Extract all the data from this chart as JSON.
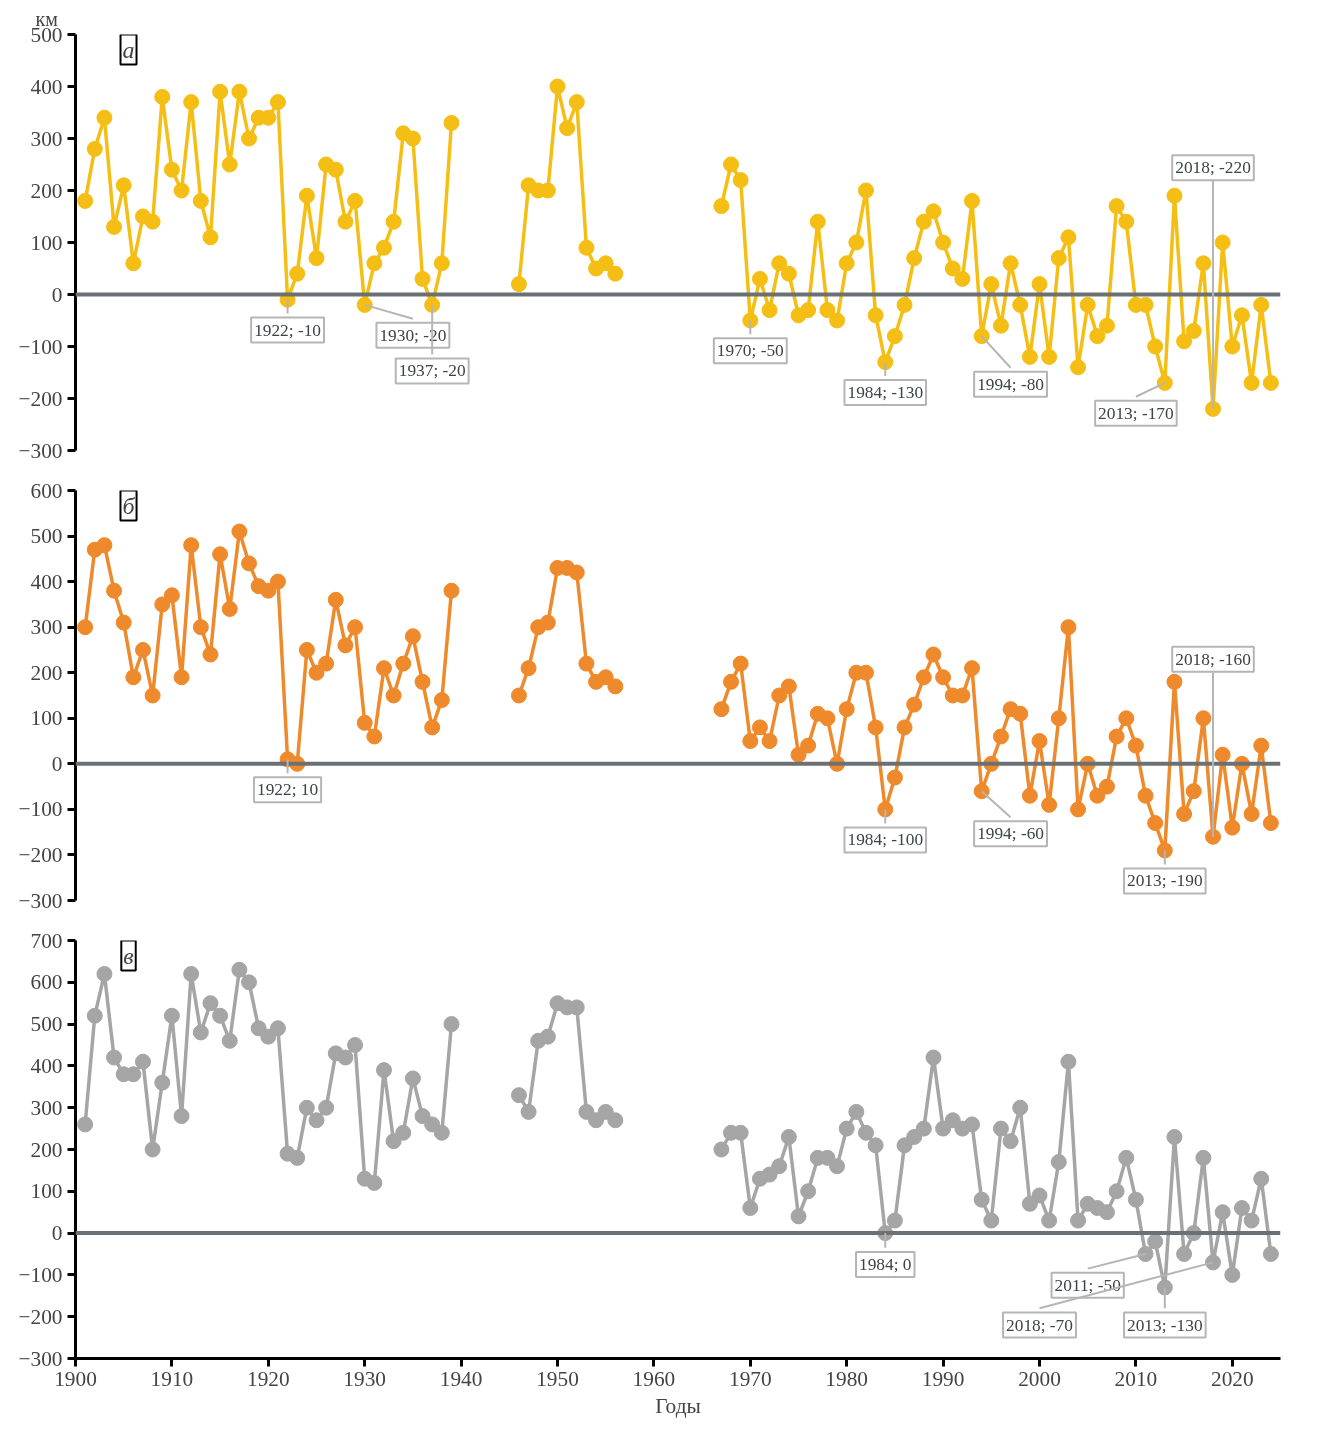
{
  "chart_data": [
    {
      "type": "line",
      "title": "а",
      "ylabel": "км",
      "marker": "circle",
      "line_style": "solid",
      "tick_labels": "y",
      "grid": false,
      "xlim": [
        1900,
        2025
      ],
      "xticks": [
        1900,
        1910,
        1920,
        1930,
        1940,
        1950,
        1960,
        1970,
        1980,
        1990,
        2000,
        2010,
        2020
      ],
      "ylim": [
        -300,
        500
      ],
      "yticks": [
        -300,
        -200,
        -100,
        0,
        100,
        200,
        300,
        400,
        500
      ],
      "ref_lines": [
        {
          "axis": "y",
          "value": 0,
          "label": null,
          "color": "#6b7075"
        }
      ],
      "x": [
        1901,
        1902,
        1903,
        1904,
        1905,
        1906,
        1907,
        1908,
        1909,
        1910,
        1911,
        1912,
        1913,
        1914,
        1915,
        1916,
        1917,
        1918,
        1919,
        1920,
        1921,
        1922,
        1923,
        1924,
        1925,
        1926,
        1927,
        1928,
        1929,
        1930,
        1931,
        1932,
        1933,
        1934,
        1935,
        1936,
        1937,
        1938,
        1939,
        1940,
        1941,
        1942,
        1943,
        1944,
        1945,
        1946,
        1947,
        1948,
        1949,
        1950,
        1951,
        1952,
        1953,
        1954,
        1955,
        1956,
        1957,
        1958,
        1959,
        1960,
        1961,
        1962,
        1963,
        1964,
        1965,
        1966,
        1967,
        1968,
        1969,
        1970,
        1971,
        1972,
        1973,
        1974,
        1975,
        1976,
        1977,
        1978,
        1979,
        1980,
        1981,
        1982,
        1983,
        1984,
        1985,
        1986,
        1987,
        1988,
        1989,
        1990,
        1991,
        1992,
        1993,
        1994,
        1995,
        1996,
        1997,
        1998,
        1999,
        2000,
        2001,
        2002,
        2003,
        2004,
        2005,
        2006,
        2007,
        2008,
        2009,
        2010,
        2011,
        2012,
        2013,
        2014,
        2015,
        2016,
        2017,
        2018,
        2019,
        2020,
        2021,
        2022,
        2023,
        2024
      ],
      "series": [
        {
          "color": "#f5be14",
          "values": [
            180,
            280,
            340,
            130,
            210,
            60,
            150,
            140,
            380,
            240,
            200,
            370,
            180,
            110,
            390,
            250,
            390,
            300,
            340,
            340,
            370,
            -10,
            40,
            190,
            70,
            250,
            240,
            140,
            180,
            -20,
            60,
            90,
            140,
            310,
            300,
            30,
            -20,
            60,
            330,
            null,
            null,
            null,
            null,
            null,
            null,
            20,
            210,
            200,
            200,
            400,
            320,
            370,
            90,
            50,
            60,
            40,
            null,
            null,
            null,
            null,
            null,
            null,
            null,
            null,
            null,
            null,
            170,
            250,
            220,
            -50,
            30,
            -30,
            60,
            40,
            -40,
            -30,
            140,
            -30,
            -50,
            60,
            100,
            200,
            -40,
            -130,
            -80,
            -20,
            70,
            140,
            160,
            100,
            50,
            30,
            180,
            -80,
            20,
            -60,
            60,
            -20,
            -120,
            20,
            -120,
            70,
            110,
            -140,
            -20,
            -80,
            -60,
            170,
            140,
            -20,
            -20,
            -100,
            -170,
            190,
            -90,
            -70,
            60,
            -220,
            100,
            -100,
            -40,
            -170,
            -20,
            -170
          ]
        }
      ],
      "annotations": [
        {
          "text": "1922; -10",
          "x": 1922,
          "y": -10
        },
        {
          "text": "1930; -20",
          "x": 1930,
          "y": -20
        },
        {
          "text": "1937; -20",
          "x": 1937,
          "y": -20
        },
        {
          "text": "1970; -50",
          "x": 1970,
          "y": -50
        },
        {
          "text": "1984; -130",
          "x": 1984,
          "y": -130
        },
        {
          "text": "1994; -80",
          "x": 1994,
          "y": -80
        },
        {
          "text": "2013; -170",
          "x": 2013,
          "y": -170
        },
        {
          "text": "2018; -220",
          "x": 2018,
          "y": -220
        }
      ]
    },
    {
      "type": "line",
      "title": "б",
      "marker": "circle",
      "line_style": "solid",
      "tick_labels": "y",
      "grid": false,
      "xlim": [
        1900,
        2025
      ],
      "xticks": [
        1900,
        1910,
        1920,
        1930,
        1940,
        1950,
        1960,
        1970,
        1980,
        1990,
        2000,
        2010,
        2020
      ],
      "ylim": [
        -300,
        600
      ],
      "yticks": [
        -300,
        -200,
        -100,
        0,
        100,
        200,
        300,
        400,
        500,
        600
      ],
      "ref_lines": [
        {
          "axis": "y",
          "value": 0,
          "label": null,
          "color": "#6b7075"
        }
      ],
      "x": [
        1901,
        1902,
        1903,
        1904,
        1905,
        1906,
        1907,
        1908,
        1909,
        1910,
        1911,
        1912,
        1913,
        1914,
        1915,
        1916,
        1917,
        1918,
        1919,
        1920,
        1921,
        1922,
        1923,
        1924,
        1925,
        1926,
        1927,
        1928,
        1929,
        1930,
        1931,
        1932,
        1933,
        1934,
        1935,
        1936,
        1937,
        1938,
        1939,
        1940,
        1941,
        1942,
        1943,
        1944,
        1945,
        1946,
        1947,
        1948,
        1949,
        1950,
        1951,
        1952,
        1953,
        1954,
        1955,
        1956,
        1957,
        1958,
        1959,
        1960,
        1961,
        1962,
        1963,
        1964,
        1965,
        1966,
        1967,
        1968,
        1969,
        1970,
        1971,
        1972,
        1973,
        1974,
        1975,
        1976,
        1977,
        1978,
        1979,
        1980,
        1981,
        1982,
        1983,
        1984,
        1985,
        1986,
        1987,
        1988,
        1989,
        1990,
        1991,
        1992,
        1993,
        1994,
        1995,
        1996,
        1997,
        1998,
        1999,
        2000,
        2001,
        2002,
        2003,
        2004,
        2005,
        2006,
        2007,
        2008,
        2009,
        2010,
        2011,
        2012,
        2013,
        2014,
        2015,
        2016,
        2017,
        2018,
        2019,
        2020,
        2021,
        2022,
        2023,
        2024
      ],
      "series": [
        {
          "color": "#ee8a2b",
          "values": [
            300,
            470,
            480,
            380,
            310,
            190,
            250,
            150,
            350,
            370,
            190,
            480,
            300,
            240,
            460,
            340,
            510,
            440,
            390,
            380,
            400,
            10,
            0,
            250,
            200,
            220,
            360,
            260,
            300,
            90,
            60,
            210,
            150,
            220,
            280,
            180,
            80,
            140,
            380,
            null,
            null,
            null,
            null,
            null,
            null,
            150,
            210,
            300,
            310,
            430,
            430,
            420,
            220,
            180,
            190,
            170,
            null,
            null,
            null,
            null,
            null,
            null,
            null,
            null,
            null,
            null,
            120,
            180,
            220,
            50,
            80,
            50,
            150,
            170,
            20,
            40,
            110,
            100,
            0,
            120,
            200,
            200,
            80,
            -100,
            -30,
            80,
            130,
            190,
            240,
            190,
            150,
            150,
            210,
            -60,
            0,
            60,
            120,
            110,
            -70,
            50,
            -90,
            100,
            300,
            -100,
            0,
            -70,
            -50,
            60,
            100,
            40,
            -70,
            -130,
            -190,
            180,
            -110,
            -60,
            100,
            -160,
            20,
            -140,
            0,
            -110,
            40,
            -130
          ]
        }
      ],
      "annotations": [
        {
          "text": "1922; 10",
          "x": 1922,
          "y": 10
        },
        {
          "text": "1984; -100",
          "x": 1984,
          "y": -100
        },
        {
          "text": "1994; -60",
          "x": 1994,
          "y": -60
        },
        {
          "text": "2013; -190",
          "x": 2013,
          "y": -190
        },
        {
          "text": "2018; -160",
          "x": 2018,
          "y": -160
        }
      ]
    },
    {
      "type": "line",
      "title": "в",
      "xlabel": "Годы",
      "marker": "circle",
      "line_style": "solid",
      "grid": false,
      "xlim": [
        1900,
        2025
      ],
      "xticks": [
        1900,
        1910,
        1920,
        1930,
        1940,
        1950,
        1960,
        1970,
        1980,
        1990,
        2000,
        2010,
        2020
      ],
      "ylim": [
        -300,
        700
      ],
      "yticks": [
        -300,
        -200,
        -100,
        0,
        100,
        200,
        300,
        400,
        500,
        600,
        700
      ],
      "ref_lines": [
        {
          "axis": "y",
          "value": 0,
          "label": null,
          "color": "#6b7075"
        }
      ],
      "x": [
        1901,
        1902,
        1903,
        1904,
        1905,
        1906,
        1907,
        1908,
        1909,
        1910,
        1911,
        1912,
        1913,
        1914,
        1915,
        1916,
        1917,
        1918,
        1919,
        1920,
        1921,
        1922,
        1923,
        1924,
        1925,
        1926,
        1927,
        1928,
        1929,
        1930,
        1931,
        1932,
        1933,
        1934,
        1935,
        1936,
        1937,
        1938,
        1939,
        1940,
        1941,
        1942,
        1943,
        1944,
        1945,
        1946,
        1947,
        1948,
        1949,
        1950,
        1951,
        1952,
        1953,
        1954,
        1955,
        1956,
        1957,
        1958,
        1959,
        1960,
        1961,
        1962,
        1963,
        1964,
        1965,
        1966,
        1967,
        1968,
        1969,
        1970,
        1971,
        1972,
        1973,
        1974,
        1975,
        1976,
        1977,
        1978,
        1979,
        1980,
        1981,
        1982,
        1983,
        1984,
        1985,
        1986,
        1987,
        1988,
        1989,
        1990,
        1991,
        1992,
        1993,
        1994,
        1995,
        1996,
        1997,
        1998,
        1999,
        2000,
        2001,
        2002,
        2003,
        2004,
        2005,
        2006,
        2007,
        2008,
        2009,
        2010,
        2011,
        2012,
        2013,
        2014,
        2015,
        2016,
        2017,
        2018,
        2019,
        2020,
        2021,
        2022,
        2023,
        2024
      ],
      "series": [
        {
          "color": "#a5a5a5",
          "values": [
            260,
            520,
            620,
            420,
            380,
            380,
            410,
            200,
            360,
            520,
            280,
            620,
            480,
            550,
            520,
            460,
            630,
            600,
            490,
            470,
            490,
            190,
            180,
            300,
            270,
            300,
            430,
            420,
            450,
            130,
            120,
            390,
            220,
            240,
            370,
            280,
            260,
            240,
            500,
            null,
            null,
            null,
            null,
            null,
            null,
            330,
            290,
            460,
            470,
            550,
            540,
            540,
            290,
            270,
            290,
            270,
            null,
            null,
            null,
            null,
            null,
            null,
            null,
            null,
            null,
            null,
            200,
            240,
            240,
            60,
            130,
            140,
            160,
            230,
            40,
            100,
            180,
            180,
            160,
            250,
            290,
            240,
            210,
            0,
            30,
            210,
            230,
            250,
            420,
            250,
            270,
            250,
            260,
            80,
            30,
            250,
            220,
            300,
            70,
            90,
            30,
            170,
            410,
            30,
            70,
            60,
            50,
            100,
            180,
            80,
            -50,
            -20,
            -130,
            230,
            -50,
            0,
            180,
            -70,
            50,
            -100,
            60,
            30,
            130,
            -50
          ]
        }
      ],
      "annotations": [
        {
          "text": "1984; 0",
          "x": 1984,
          "y": 0
        },
        {
          "text": "2011; -50",
          "x": 2011,
          "y": -50
        },
        {
          "text": "2013; -130",
          "x": 2013,
          "y": -130
        },
        {
          "text": "2018; -70",
          "x": 2018,
          "y": -70
        }
      ]
    }
  ]
}
